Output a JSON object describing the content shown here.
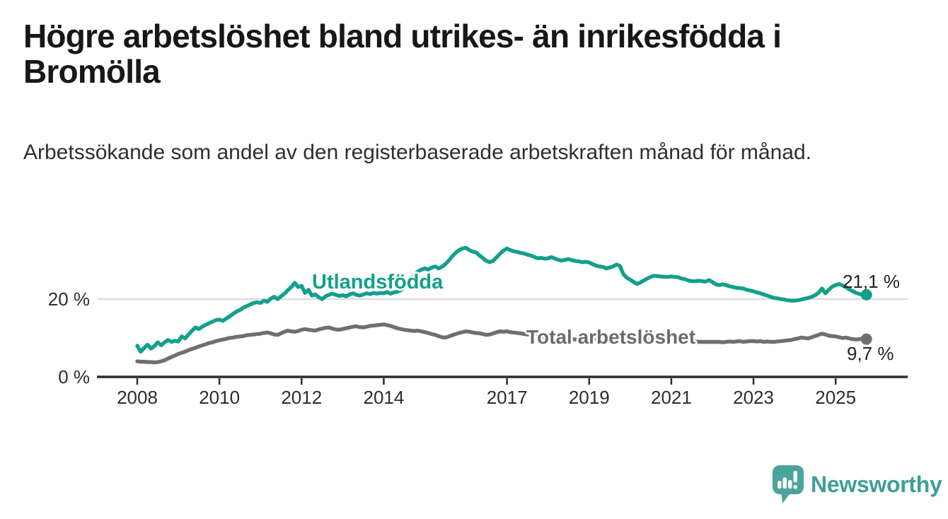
{
  "header": {
    "title": "Högre arbetslöshet bland utrikes- än inrikesfödda i Bromölla",
    "subtitle": "Arbetssökande som andel av den registerbaserade arbetskraften månad för månad."
  },
  "chart_data": {
    "type": "line",
    "title": "Högre arbetslöshet bland utrikes- än inrikesfödda i Bromölla",
    "x_unit": "month",
    "x_start": "2008-01",
    "x_end": "2025-10",
    "x_start_year": 2008,
    "points_per_year": 12,
    "ylim": [
      0,
      36
    ],
    "grid": "single-line-at-20",
    "y_axis": {
      "ticks": [
        {
          "label": "0 %",
          "value": 0
        },
        {
          "label": "20 %",
          "value": 20
        }
      ]
    },
    "x_axis": {
      "ticks": [
        {
          "label": "2008",
          "year": 2008
        },
        {
          "label": "2010",
          "year": 2010
        },
        {
          "label": "2012",
          "year": 2012
        },
        {
          "label": "2014",
          "year": 2014
        },
        {
          "label": "2017",
          "year": 2017
        },
        {
          "label": "2019",
          "year": 2019
        },
        {
          "label": "2021",
          "year": 2021
        },
        {
          "label": "2023",
          "year": 2023
        },
        {
          "label": "2025",
          "year": 2025
        }
      ]
    },
    "series": [
      {
        "name": "Utlandsfödda",
        "color": "#13a08b",
        "end_label": "21,1 %",
        "end_value": 21.1,
        "values": [
          8.0,
          6.5,
          7.4,
          8.3,
          7.3,
          7.9,
          8.9,
          8.1,
          8.9,
          9.5,
          9.0,
          9.3,
          9.1,
          10.4,
          9.9,
          10.9,
          11.9,
          12.7,
          12.3,
          12.9,
          13.4,
          13.8,
          14.2,
          14.6,
          14.7,
          14.4,
          15.0,
          15.6,
          16.2,
          16.8,
          17.2,
          17.8,
          18.2,
          18.6,
          19.0,
          19.2,
          19.0,
          19.6,
          19.3,
          20.1,
          20.6,
          20.0,
          20.7,
          21.4,
          22.3,
          23.1,
          24.2,
          23.1,
          23.4,
          21.6,
          22.4,
          20.9,
          21.2,
          20.5,
          20.0,
          20.7,
          21.1,
          21.4,
          21.1,
          20.8,
          21.0,
          20.7,
          21.2,
          21.5,
          21.1,
          20.9,
          21.2,
          21.5,
          21.3,
          21.6,
          21.4,
          21.6,
          21.5,
          21.8,
          21.4,
          21.7,
          21.9,
          22.3,
          23.0,
          24.0,
          25.2,
          26.3,
          27.1,
          27.6,
          27.9,
          27.6,
          28.1,
          28.4,
          27.9,
          28.3,
          29.0,
          29.9,
          31.0,
          31.9,
          32.6,
          33.0,
          33.2,
          32.6,
          32.2,
          32.0,
          31.2,
          30.5,
          29.8,
          29.5,
          29.9,
          30.8,
          31.7,
          32.5,
          33.0,
          32.6,
          32.3,
          32.1,
          31.9,
          31.7,
          31.4,
          31.2,
          30.8,
          30.5,
          30.6,
          30.4,
          30.5,
          30.8,
          30.4,
          30.1,
          29.9,
          30.1,
          30.3,
          30.0,
          29.8,
          29.7,
          29.5,
          29.6,
          29.4,
          29.0,
          28.6,
          28.4,
          28.3,
          27.9,
          28.1,
          28.4,
          28.9,
          28.5,
          26.4,
          25.5,
          25.0,
          24.4,
          23.9,
          24.3,
          24.8,
          25.3,
          25.7,
          26.0,
          25.9,
          25.8,
          25.7,
          25.7,
          25.8,
          25.7,
          25.6,
          25.3,
          25.1,
          24.8,
          24.6,
          24.6,
          24.7,
          24.6,
          24.5,
          24.9,
          24.4,
          23.8,
          23.6,
          23.8,
          23.6,
          23.3,
          23.1,
          22.9,
          22.8,
          22.7,
          22.4,
          22.2,
          22.0,
          21.7,
          21.5,
          21.2,
          20.9,
          20.6,
          20.3,
          20.2,
          20.0,
          19.9,
          19.7,
          19.6,
          19.6,
          19.7,
          19.9,
          20.1,
          20.3,
          20.6,
          21.0,
          21.6,
          22.7,
          21.5,
          22.4,
          23.2,
          23.6,
          23.9,
          23.5,
          23.1,
          22.5,
          22.0,
          21.6,
          21.3,
          21.0,
          21.1
        ]
      },
      {
        "name": "Total arbetslöshet",
        "color": "#6f6f6f",
        "end_label": "9,7 %",
        "end_value": 9.7,
        "values": [
          4.0,
          3.9,
          3.9,
          3.8,
          3.8,
          3.7,
          3.8,
          4.0,
          4.3,
          4.7,
          5.1,
          5.5,
          5.9,
          6.2,
          6.5,
          6.9,
          7.2,
          7.5,
          7.8,
          8.1,
          8.4,
          8.7,
          8.9,
          9.2,
          9.4,
          9.6,
          9.8,
          10.0,
          10.1,
          10.3,
          10.4,
          10.5,
          10.7,
          10.8,
          10.9,
          11.0,
          11.1,
          11.3,
          11.4,
          11.2,
          10.9,
          10.8,
          11.2,
          11.6,
          11.9,
          11.7,
          11.6,
          11.8,
          12.1,
          12.3,
          12.1,
          12.0,
          11.9,
          12.2,
          12.4,
          12.6,
          12.7,
          12.4,
          12.2,
          12.1,
          12.3,
          12.5,
          12.7,
          12.9,
          13.0,
          12.8,
          12.7,
          12.9,
          13.1,
          13.2,
          13.3,
          13.4,
          13.5,
          13.3,
          13.1,
          12.8,
          12.5,
          12.3,
          12.1,
          12.0,
          11.9,
          11.8,
          11.9,
          11.7,
          11.5,
          11.3,
          11.0,
          10.8,
          10.5,
          10.2,
          10.1,
          10.4,
          10.7,
          11.0,
          11.3,
          11.5,
          11.7,
          11.6,
          11.4,
          11.3,
          11.2,
          11.0,
          10.8,
          10.9,
          11.2,
          11.5,
          11.7,
          11.6,
          11.7,
          11.5,
          11.4,
          11.3,
          11.2,
          11.0,
          10.9,
          10.8,
          10.7,
          10.5,
          10.3,
          10.2,
          10.1,
          9.9,
          9.7,
          9.5,
          9.6,
          9.8,
          9.9,
          9.7,
          9.6,
          9.5,
          9.6,
          9.5,
          9.5,
          9.7,
          9.9,
          9.7,
          9.5,
          9.3,
          9.2,
          9.2,
          9.3,
          9.5,
          9.4,
          9.3,
          9.4,
          9.5,
          9.7,
          9.9,
          10.0,
          10.1,
          10.0,
          9.9,
          9.8,
          9.7,
          9.6,
          9.5,
          9.5,
          9.4,
          9.3,
          9.3,
          9.2,
          9.2,
          9.1,
          9.1,
          9.0,
          9.0,
          9.0,
          9.0,
          9.0,
          9.0,
          9.0,
          8.9,
          9.0,
          9.1,
          9.0,
          9.1,
          9.2,
          9.0,
          9.1,
          9.2,
          9.2,
          9.1,
          9.2,
          9.0,
          9.1,
          9.0,
          9.0,
          9.1,
          9.2,
          9.3,
          9.4,
          9.5,
          9.7,
          9.9,
          10.1,
          10.0,
          9.9,
          10.2,
          10.5,
          10.8,
          11.1,
          10.9,
          10.6,
          10.5,
          10.4,
          10.2,
          10.0,
          10.1,
          9.9,
          9.7,
          9.6,
          9.7,
          9.9,
          9.7
        ]
      }
    ]
  },
  "style": {
    "axis_color": "#2d2d2d",
    "grid_color": "#d8d8d8",
    "accent_teal": "#13a08b",
    "series_gray": "#6f6f6f"
  },
  "branding": {
    "logo_text": "Newsworthy",
    "logo_color": "#3f9e99"
  }
}
